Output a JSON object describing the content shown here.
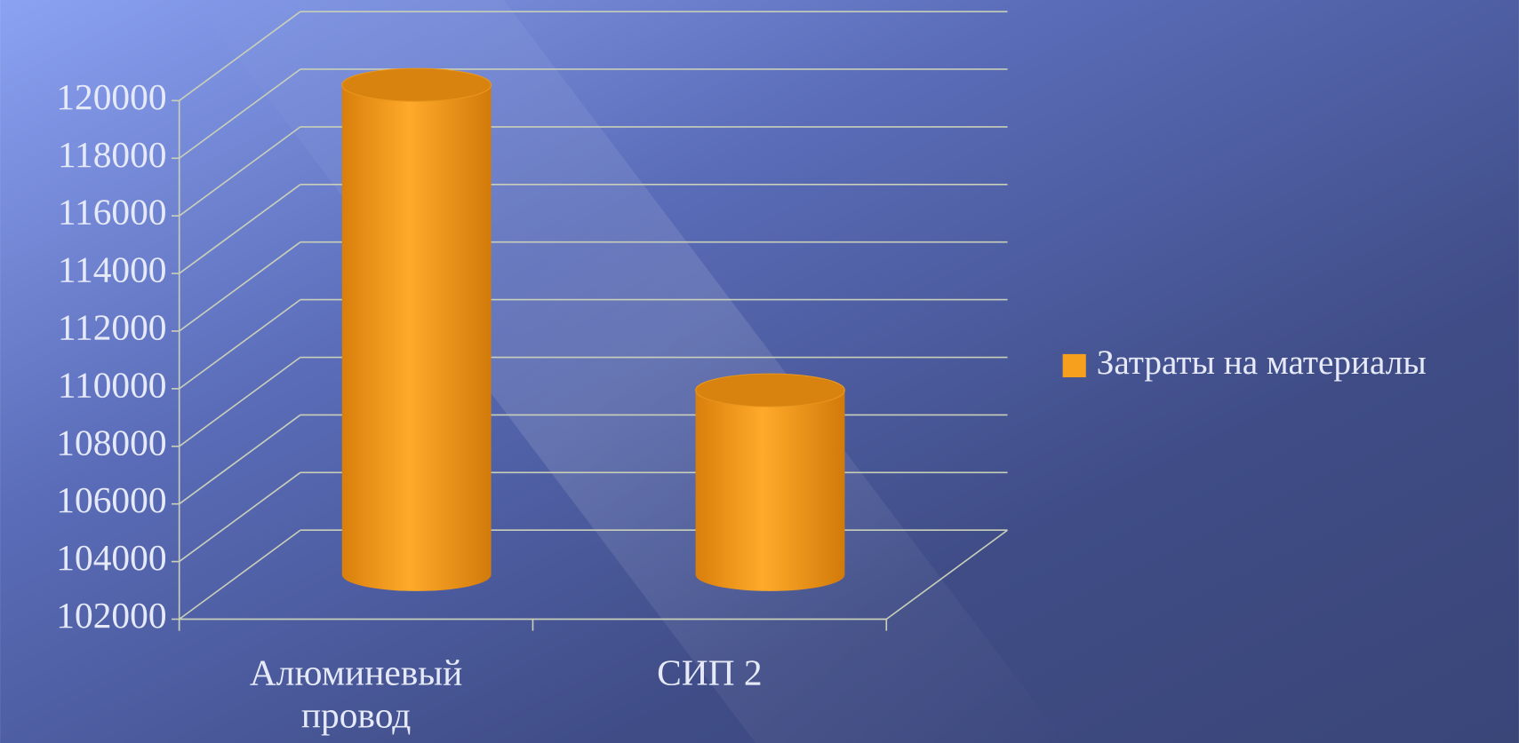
{
  "chart_data": {
    "type": "bar3d",
    "categories": [
      "Алюминевый провод",
      "СИП  2"
    ],
    "series": [
      {
        "name": "Затраты на материалы",
        "color": "#f7a01e",
        "values": [
          119000,
          108400
        ]
      }
    ],
    "ylim": [
      102000,
      120000
    ],
    "yticks": [
      102000,
      104000,
      106000,
      108000,
      110000,
      112000,
      114000,
      116000,
      118000,
      120000
    ],
    "grid": true,
    "legend": "right"
  }
}
